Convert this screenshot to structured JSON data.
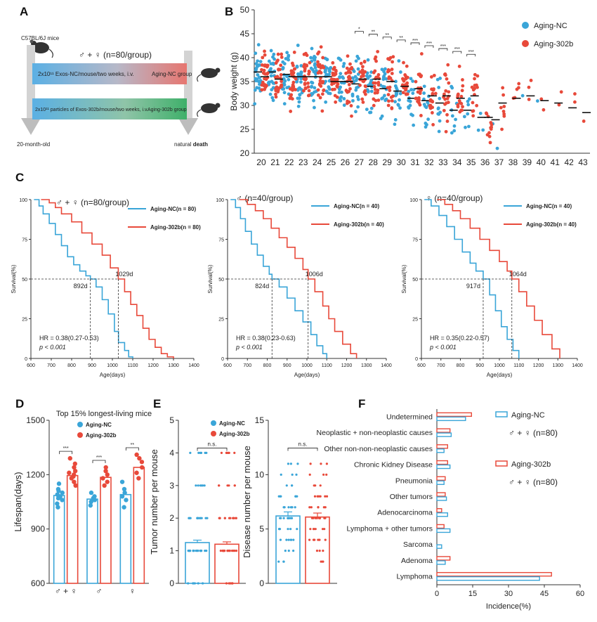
{
  "colors": {
    "nc": "#3aa5d8",
    "b302": "#e8493a",
    "axis": "#333333",
    "nc_dark": "#1f78b4"
  },
  "panelA": {
    "label": "A",
    "mice": "C57BL/6J mice",
    "group": "♂ + ♀ (n=80/group)",
    "bar1_text": "2x10¹¹ Exos-NC/mouse/two weeks, i.v.",
    "bar1_group": "Aging-NC group",
    "bar2_text": "2x10¹¹ particles of Exos-302b/mouse/two weeks, i.v.",
    "bar2_group": "Aging-302b group",
    "start": "20-month-old",
    "end_prefix": "natural ",
    "end_bold": "death"
  },
  "panelB": {
    "label": "B",
    "legend_nc": "Aging-NC",
    "legend_302b": "Aging-302b"
  },
  "panelC": {
    "label": "C"
  },
  "panelD": {
    "label": "D"
  },
  "panelE": {
    "label": "E"
  },
  "panelF": {
    "label": "F",
    "legend_nc": "Aging-NC",
    "legend_302b": "Aging-302b",
    "n_nc": "♂ + ♀ (n=80)",
    "n_302b": "♂ + ♀ (n=80)"
  },
  "chart_data": [
    {
      "id": "B",
      "type": "scatter",
      "ylabel": "Body weight (g)",
      "ylim": [
        20,
        50
      ],
      "yticks": [
        20,
        25,
        30,
        35,
        40,
        45,
        50
      ],
      "x": [
        20,
        21,
        22,
        23,
        24,
        25,
        26,
        27,
        28,
        29,
        30,
        31,
        32,
        33,
        34,
        35,
        36,
        37,
        38,
        39,
        40,
        41,
        42,
        43
      ],
      "series": [
        {
          "name": "Aging-NC",
          "median": [
            37,
            37,
            36.5,
            36,
            36,
            36,
            35,
            34.5,
            34,
            33.5,
            33,
            31.5,
            31,
            30.5,
            29,
            29,
            27.5,
            27,
            null,
            null,
            null,
            null,
            null,
            null
          ],
          "n": [
            60,
            60,
            60,
            60,
            58,
            56,
            52,
            48,
            44,
            40,
            36,
            30,
            26,
            22,
            18,
            14,
            6,
            4,
            0,
            1,
            1,
            0,
            0,
            0
          ]
        },
        {
          "name": "Aging-302b",
          "median": [
            36,
            35.5,
            36,
            36,
            36,
            35,
            35,
            35.5,
            35.5,
            35,
            34,
            33.5,
            32,
            32,
            31.5,
            32,
            27.5,
            30.5,
            31.5,
            32,
            31,
            30.5,
            29.5,
            28.5
          ],
          "n": [
            60,
            60,
            60,
            60,
            60,
            58,
            56,
            54,
            52,
            50,
            48,
            46,
            44,
            40,
            36,
            30,
            24,
            16,
            10,
            6,
            4,
            3,
            3,
            2
          ]
        }
      ],
      "significance": [
        "*",
        "**",
        "**",
        "**",
        "***",
        "***",
        "***",
        "***",
        "***"
      ]
    },
    {
      "id": "C1",
      "type": "line",
      "title": "♂ + ♀ (n=80/group)",
      "xlabel": "Age(days)",
      "ylabel": "Survival(%)",
      "xlim": [
        600,
        1400
      ],
      "ylim": [
        0,
        100
      ],
      "xticks": [
        600,
        700,
        800,
        900,
        1000,
        1100,
        1200,
        1300,
        1400
      ],
      "yticks": [
        0,
        25,
        50,
        75,
        100
      ],
      "legend_nc": "Aging-NC(n = 80)",
      "legend_302b": "Aging-302b(n = 80)",
      "median_nc": "892d",
      "median_302b": "1029d",
      "median_nc_x": 892,
      "median_302b_x": 1029,
      "hr": "HR = 0.38(0.27-0.53)",
      "p": "p < 0.001",
      "series": [
        {
          "name": "Aging-NC",
          "x": [
            615,
            640,
            660,
            690,
            720,
            750,
            780,
            810,
            840,
            870,
            892,
            920,
            950,
            980,
            1010,
            1030,
            1060,
            1080,
            1100
          ],
          "y": [
            100,
            96,
            91,
            85,
            78,
            71,
            64,
            59,
            55,
            52,
            50,
            45,
            37,
            28,
            17,
            10,
            5,
            1,
            0
          ]
        },
        {
          "name": "Aging-302b",
          "x": [
            650,
            690,
            720,
            750,
            800,
            850,
            900,
            950,
            990,
            1029,
            1060,
            1090,
            1120,
            1150,
            1180,
            1210,
            1240,
            1270,
            1300
          ],
          "y": [
            100,
            98,
            95,
            91,
            86,
            79,
            72,
            65,
            57,
            50,
            42,
            34,
            27,
            19,
            12,
            7,
            3,
            1,
            0
          ]
        }
      ]
    },
    {
      "id": "C2",
      "type": "line",
      "title": "♂ (n=40/group)",
      "xlabel": "Age(days)",
      "ylabel": "Survival(%)",
      "xlim": [
        600,
        1400
      ],
      "ylim": [
        0,
        100
      ],
      "xticks": [
        600,
        700,
        800,
        900,
        1000,
        1100,
        1200,
        1300,
        1400
      ],
      "yticks": [
        0,
        25,
        50,
        75,
        100
      ],
      "legend_nc": "Aging-NC(n = 40)",
      "legend_302b": "Aging-302b(n = 40)",
      "median_nc": "824d",
      "median_302b": "1006d",
      "median_nc_x": 824,
      "median_302b_x": 1006,
      "hr": "HR = 0.38(0.23-0.63)",
      "p": "p < 0.001",
      "series": [
        {
          "name": "Aging-NC",
          "x": [
            615,
            640,
            665,
            690,
            720,
            750,
            780,
            810,
            824,
            860,
            900,
            940,
            980,
            1020,
            1050,
            1080,
            1100
          ],
          "y": [
            100,
            95,
            88,
            80,
            72,
            65,
            58,
            53,
            50,
            45,
            38,
            30,
            23,
            15,
            8,
            3,
            0
          ]
        },
        {
          "name": "Aging-302b",
          "x": [
            660,
            700,
            740,
            780,
            820,
            860,
            900,
            940,
            980,
            1006,
            1040,
            1080,
            1110,
            1140,
            1180,
            1220,
            1250
          ],
          "y": [
            100,
            97,
            93,
            88,
            82,
            76,
            70,
            63,
            56,
            50,
            42,
            33,
            25,
            17,
            9,
            3,
            0
          ]
        }
      ]
    },
    {
      "id": "C3",
      "type": "line",
      "title": "♀ (n=40/group)",
      "xlabel": "Age(days)",
      "ylabel": "Survival(%)",
      "xlim": [
        600,
        1400
      ],
      "ylim": [
        0,
        100
      ],
      "xticks": [
        600,
        700,
        800,
        900,
        1000,
        1100,
        1200,
        1300,
        1400
      ],
      "yticks": [
        0,
        25,
        50,
        75,
        100
      ],
      "legend_nc": "Aging-NC(n = 40)",
      "legend_302b": "Aging-302b(n = 40)",
      "median_nc": "917d",
      "median_302b": "1064d",
      "median_nc_x": 917,
      "median_302b_x": 1064,
      "hr": "HR = 0.35(0.22-0.57)",
      "p": "p < 0.001",
      "series": [
        {
          "name": "Aging-NC",
          "x": [
            615,
            650,
            690,
            730,
            770,
            810,
            850,
            880,
            917,
            950,
            980,
            1010,
            1040,
            1070,
            1100
          ],
          "y": [
            100,
            96,
            90,
            83,
            75,
            67,
            60,
            55,
            50,
            40,
            30,
            20,
            12,
            5,
            0
          ]
        },
        {
          "name": "Aging-302b",
          "x": [
            680,
            720,
            760,
            800,
            850,
            900,
            950,
            1000,
            1040,
            1064,
            1100,
            1140,
            1180,
            1220,
            1270,
            1310
          ],
          "y": [
            100,
            97,
            93,
            88,
            82,
            75,
            68,
            61,
            55,
            50,
            42,
            33,
            24,
            15,
            6,
            0
          ]
        }
      ]
    },
    {
      "id": "D",
      "type": "bar",
      "title": "Top 15% longest-living mice",
      "ylabel": "Lifespan(days)",
      "ylim": [
        600,
        1500
      ],
      "yticks": [
        600,
        900,
        1200,
        1500
      ],
      "categories": [
        "♂ + ♀",
        "♂",
        "♀"
      ],
      "legend_nc": "Aging-NC",
      "legend_302b": "Aging-302b",
      "significance": [
        "***",
        "***",
        "**"
      ],
      "series": [
        {
          "name": "Aging-NC",
          "values": [
            1085,
            1065,
            1090
          ],
          "points": [
            [
              1020,
              1040,
              1060,
              1070,
              1080,
              1090,
              1100,
              1110,
              1120,
              1150
            ],
            [
              1030,
              1050,
              1060,
              1070,
              1080,
              1100
            ],
            [
              1020,
              1060,
              1080,
              1100,
              1120,
              1160
            ]
          ]
        },
        {
          "name": "Aging-302b",
          "values": [
            1195,
            1185,
            1240
          ],
          "points": [
            [
              1140,
              1160,
              1180,
              1190,
              1200,
              1210,
              1220,
              1240,
              1260,
              1290
            ],
            [
              1140,
              1160,
              1180,
              1200,
              1220,
              1240
            ],
            [
              1180,
              1210,
              1240,
              1270,
              1290,
              1310
            ]
          ]
        }
      ]
    },
    {
      "id": "E1",
      "type": "bar",
      "ylabel": "Tumor number per mouse",
      "ylim": [
        0,
        5
      ],
      "yticks": [
        0,
        1,
        2,
        3,
        4,
        5
      ],
      "legend_nc": "Aging-NC",
      "legend_302b": "Aging-302b",
      "significance": "n.s.",
      "series": [
        {
          "name": "Aging-NC",
          "values": [
            1.25
          ]
        },
        {
          "name": "Aging-302b",
          "values": [
            1.2
          ]
        }
      ]
    },
    {
      "id": "E2",
      "type": "bar",
      "ylabel": "Disease number per mouse",
      "ylim": [
        0,
        15
      ],
      "yticks": [
        0,
        5,
        10,
        15
      ],
      "significance": "n.s.",
      "series": [
        {
          "name": "Aging-NC",
          "values": [
            6.2
          ]
        },
        {
          "name": "Aging-302b",
          "values": [
            6.1
          ]
        }
      ]
    },
    {
      "id": "F",
      "type": "bar",
      "xlabel": "Incidence(%)",
      "xlim": [
        0,
        60
      ],
      "xticks": [
        0,
        15,
        30,
        45,
        60
      ],
      "categories": [
        "Undetermined",
        "Neoplastic + non-neoplastic causes",
        "Other non-non-neoplastic causes",
        "Chronic Kidney Disease",
        "Pneumonia",
        "Other tumors",
        "Adenocarcinoma",
        "Lymphoma + other tumors",
        "Sarcoma",
        "Adenoma",
        "Lymphoma"
      ],
      "series": [
        {
          "name": "Aging-NC",
          "values": [
            12,
            6,
            3,
            5.5,
            3,
            4,
            4.5,
            5.5,
            2,
            3.5,
            43
          ]
        },
        {
          "name": "Aging-302b",
          "values": [
            14.5,
            5.5,
            4.5,
            4.5,
            3.5,
            3.5,
            2,
            3,
            0,
            5.5,
            48
          ]
        }
      ]
    }
  ]
}
